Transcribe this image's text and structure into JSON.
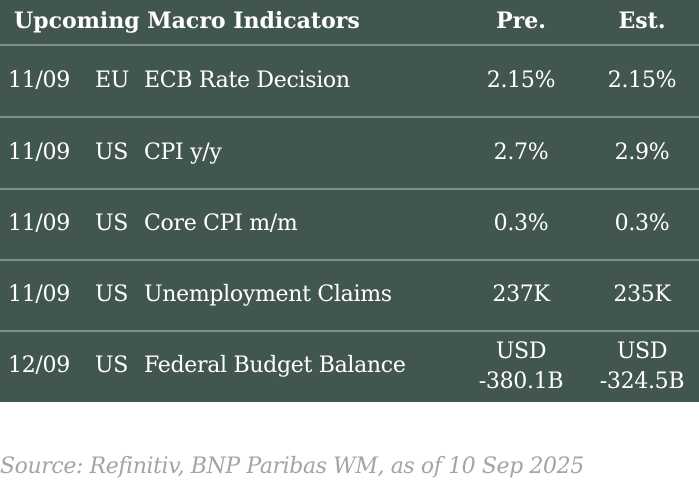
{
  "table": {
    "title": "Upcoming Macro Indicators",
    "col_pre": "Pre.",
    "col_est": "Est.",
    "rows": [
      {
        "date": "11/09",
        "region": "EU",
        "event": "ECB Rate Decision",
        "pre": "2.15%",
        "est": "2.15%"
      },
      {
        "date": "11/09",
        "region": "US",
        "event": "CPI y/y",
        "pre": "2.7%",
        "est": "2.9%"
      },
      {
        "date": "11/09",
        "region": "US",
        "event": "Core CPI m/m",
        "pre": "0.3%",
        "est": "0.3%"
      },
      {
        "date": "11/09",
        "region": "US",
        "event": "Unemployment Claims",
        "pre": "237K",
        "est": "235K"
      },
      {
        "date": "12/09",
        "region": "US",
        "event": "Federal Budget Balance",
        "pre": "USD -380.1B",
        "est": "USD -324.5B"
      }
    ]
  },
  "source": "Source: Refinitiv, BNP Paribas WM, as of 10 Sep 2025",
  "colors": {
    "table_bg": "#425650",
    "divider": "#7e8d88",
    "text": "#ffffff",
    "source_text": "#a4a4a4"
  }
}
